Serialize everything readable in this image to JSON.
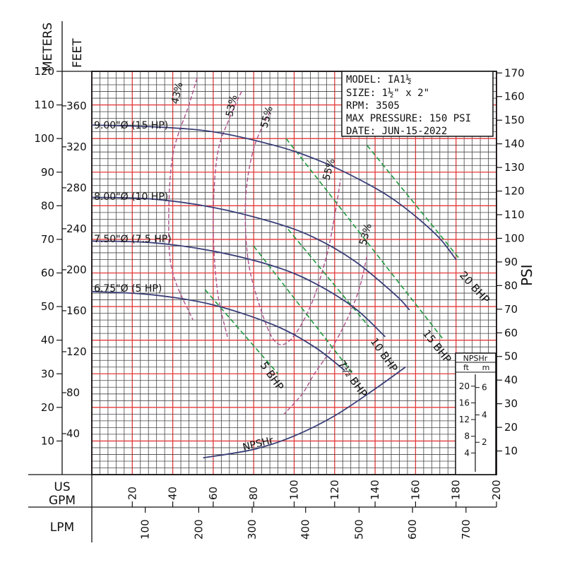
{
  "chart_data": {
    "type": "line",
    "title": "",
    "info_box": [
      "MODEL: IA1½",
      "SIZE: 1½\" x 2\"",
      "RPM: 3505",
      "MAX PRESSURE: 150 PSI",
      "DATE: JUN-15-2022"
    ],
    "axes": {
      "x_gpm": {
        "label": [
          "US",
          "GPM"
        ],
        "range": [
          0,
          200
        ],
        "ticks": [
          20,
          40,
          60,
          80,
          100,
          120,
          140,
          160,
          180,
          200
        ]
      },
      "x_lpm": {
        "label": "LPM",
        "ticks": [
          100,
          200,
          300,
          400,
          500,
          600,
          700
        ]
      },
      "y_meters": {
        "label": "METERS",
        "range": [
          0,
          120
        ],
        "ticks": [
          10,
          20,
          30,
          40,
          50,
          60,
          70,
          80,
          90,
          100,
          110,
          120
        ]
      },
      "y_feet": {
        "label": "FEET",
        "ticks": [
          40,
          80,
          120,
          160,
          200,
          240,
          280,
          320,
          360
        ]
      },
      "y_psi": {
        "label": "PSI",
        "ticks": [
          10,
          20,
          30,
          40,
          50,
          60,
          70,
          80,
          90,
          100,
          110,
          120,
          130,
          140,
          150,
          160,
          170
        ]
      }
    },
    "grid": true,
    "series": [
      {
        "name": "9.00\"Ø (15 HP)",
        "x": [
          0,
          30,
          60,
          90,
          110,
          130,
          150,
          170,
          180
        ],
        "y": [
          104,
          103.5,
          102,
          98,
          94,
          88.5,
          81.5,
          71.5,
          64
        ]
      },
      {
        "name": "8.00\"Ø (10 HP)",
        "x": [
          0,
          30,
          60,
          90,
          110,
          130,
          150,
          157
        ],
        "y": [
          82.5,
          82,
          79.5,
          75,
          70.5,
          63.5,
          53.5,
          49
        ]
      },
      {
        "name": "7.50\"Ø (7.5 HP)",
        "x": [
          0,
          30,
          60,
          90,
          110,
          130,
          145
        ],
        "y": [
          69.5,
          69,
          66.5,
          62,
          57,
          49.5,
          41
        ]
      },
      {
        "name": "6.75\"Ø (5 HP)",
        "x": [
          0,
          30,
          60,
          90,
          110,
          125
        ],
        "y": [
          54.5,
          53.5,
          50.5,
          44.5,
          38,
          31
        ]
      },
      {
        "name": "NPSHr",
        "x": [
          55,
          80,
          100,
          120,
          140,
          155
        ],
        "y": [
          5,
          7.5,
          11.5,
          17.5,
          25.5,
          32
        ]
      }
    ],
    "efficiency_curves": [
      {
        "label": "43%",
        "x": [
          52,
          48,
          40,
          38,
          40,
          50
        ],
        "y": [
          118,
          110,
          95,
          75,
          60,
          46
        ]
      },
      {
        "label": "53%",
        "x": [
          74,
          68,
          62,
          60,
          62,
          67
        ],
        "y": [
          114,
          106,
          95,
          75,
          55,
          41
        ]
      },
      {
        "label": "55%",
        "x": [
          88,
          80,
          76,
          77,
          82,
          90,
          98,
          108,
          116,
          120,
          123
        ],
        "y": [
          108,
          97,
          82,
          65,
          52,
          40,
          40,
          50,
          65,
          77,
          88
        ]
      },
      {
        "label": "53%",
        "x": [
          136,
          132,
          126,
          118,
          110,
          104,
          95
        ],
        "y": [
          65,
          55,
          46,
          37,
          30,
          24,
          18
        ]
      }
    ],
    "efficiency_labels": [
      "43%",
      "53%",
      "55%",
      "55%",
      "53%"
    ],
    "bhp_lines": [
      {
        "label": "5 BHP",
        "x": [
          56,
          92
        ],
        "y": [
          55,
          30
        ]
      },
      {
        "label": "7½ BHP",
        "x": [
          80,
          129
        ],
        "y": [
          68,
          30
        ]
      },
      {
        "label": "10 BHP",
        "x": [
          97,
          137
        ],
        "y": [
          73,
          44
        ]
      },
      {
        "label": "15 BHP",
        "x": [
          96,
          174
        ],
        "y": [
          100,
          40
        ]
      },
      {
        "label": "20 BHP",
        "x": [
          136,
          182
        ],
        "y": [
          98,
          64
        ]
      }
    ],
    "bhp_labels": [
      "5 BHP",
      "7½ BHP",
      "10 BHP",
      "15 BHP",
      "20 BHP"
    ],
    "npshr_inset": {
      "title": "NPSHr",
      "col_ft": "ft",
      "col_m": "m",
      "ft_ticks": [
        4,
        8,
        12,
        16,
        20
      ],
      "m_ticks": [
        2,
        4,
        6
      ]
    },
    "colors": {
      "head_curves": "#3a3f78",
      "efficiency": "#b0508a",
      "bhp": "#1f9a3c",
      "grid_major": "#e23a3a",
      "grid_minor": "#444444"
    }
  }
}
